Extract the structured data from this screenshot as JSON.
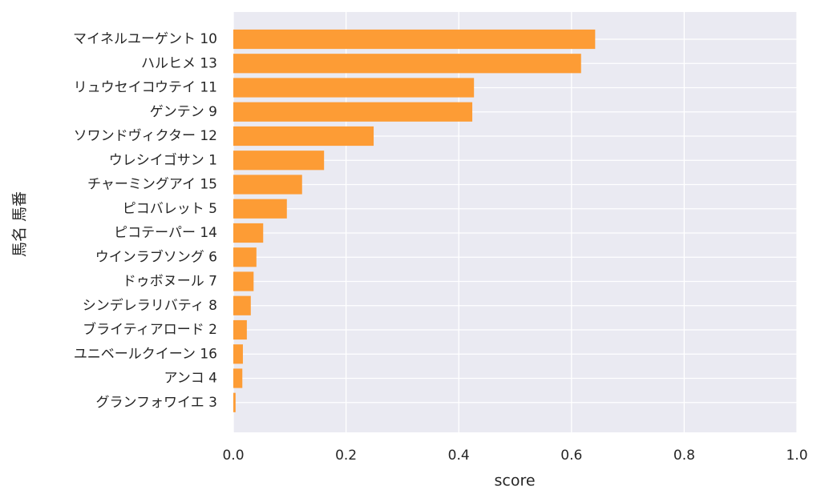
{
  "chart_data": {
    "type": "barh",
    "categories": [
      "マイネルユーゲント 10",
      "ハルヒメ 13",
      "リュウセイコウテイ 11",
      "ゲンテン 9",
      "ソワンドヴィクター 12",
      "ウレシイゴサン 1",
      "チャーミングアイ 15",
      "ピコバレット 5",
      "ピコテーパー 14",
      "ウインラブソング 6",
      "ドゥボヌール 7",
      "シンデレラリバティ 8",
      "ブライティアロード 2",
      "ユニベールクイーン 16",
      "アンコ 4",
      "グランフォワイエ 3"
    ],
    "values": [
      0.642,
      0.617,
      0.427,
      0.424,
      0.249,
      0.161,
      0.122,
      0.095,
      0.053,
      0.041,
      0.036,
      0.031,
      0.024,
      0.017,
      0.016,
      0.004
    ],
    "color": "#fd9c35",
    "xlabel": "score",
    "ylabel": "馬名 馬番",
    "xlim": [
      0,
      1
    ],
    "xticks": [
      {
        "value": 0,
        "label": "0.0"
      },
      {
        "value": 0.2,
        "label": "0.2"
      },
      {
        "value": 0.4,
        "label": "0.4"
      },
      {
        "value": 0.6,
        "label": "0.6"
      },
      {
        "value": 0.8,
        "label": "0.8"
      },
      {
        "value": 1,
        "label": "1.0"
      }
    ],
    "grid": true
  }
}
